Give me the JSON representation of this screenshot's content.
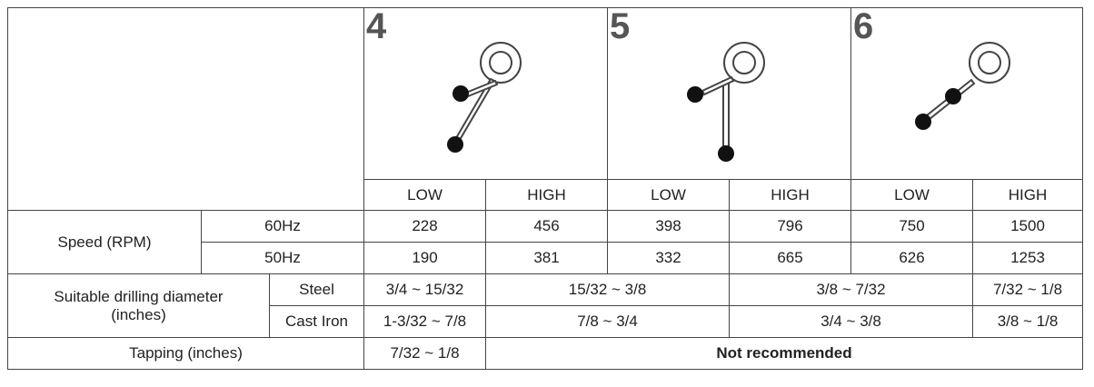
{
  "positions": [
    {
      "number": "4",
      "low": "LOW",
      "high": "HIGH"
    },
    {
      "number": "5",
      "low": "LOW",
      "high": "HIGH"
    },
    {
      "number": "6",
      "low": "LOW",
      "high": "HIGH"
    }
  ],
  "speed": {
    "label": "Speed (RPM)",
    "hz60": {
      "label": "60Hz",
      "values": [
        "228",
        "456",
        "398",
        "796",
        "750",
        "1500"
      ]
    },
    "hz50": {
      "label": "50Hz",
      "values": [
        "190",
        "381",
        "332",
        "665",
        "626",
        "1253"
      ]
    }
  },
  "drilling": {
    "label_line1": "Suitable drilling diameter",
    "label_line2": "(inches)",
    "steel": {
      "label": "Steel",
      "values": [
        "3/4 ~ 15/32",
        "15/32 ~ 3/8",
        "3/8 ~ 7/32",
        "7/32 ~ 1/8"
      ]
    },
    "cast_iron": {
      "label": "Cast Iron",
      "values": [
        "1-3/32 ~ 7/8",
        "7/8 ~ 3/4",
        "3/4 ~ 3/8",
        "3/8 ~ 1/8"
      ]
    }
  },
  "tapping": {
    "label": "Tapping (inches)",
    "value": "7/32 ~ 1/8",
    "not_recommended": "Not recommended"
  }
}
